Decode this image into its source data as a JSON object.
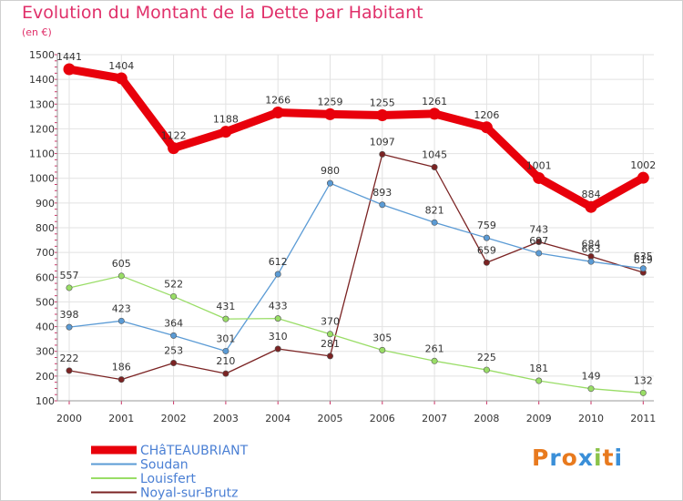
{
  "title": "Evolution du Montant de la Dette par Habitant",
  "subtitle": "(en €)",
  "logo": {
    "text": "Proxiti",
    "colors": [
      "#e87a1e",
      "#3a8fd8",
      "#e87a1e",
      "#3a8fd8",
      "#8bc34a",
      "#e87a1e",
      "#3a8fd8"
    ]
  },
  "chart_data": {
    "type": "line",
    "x": [
      "2000",
      "2001",
      "2002",
      "2003",
      "2004",
      "2005",
      "2006",
      "2007",
      "2008",
      "2009",
      "2010",
      "2011"
    ],
    "ylim": [
      100,
      1500
    ],
    "yticks": [
      100,
      200,
      300,
      400,
      500,
      600,
      700,
      800,
      900,
      1000,
      1100,
      1200,
      1300,
      1400,
      1500
    ],
    "grid": true,
    "legend_position": "bottom-left",
    "series": [
      {
        "name": "CHâTEAUBRIANT",
        "color": "#e8000b",
        "values": [
          1441,
          1404,
          1122,
          1188,
          1266,
          1259,
          1255,
          1261,
          1206,
          1001,
          884,
          1002
        ]
      },
      {
        "name": "Soudan",
        "color": "#5b9bd5",
        "values": [
          398,
          423,
          364,
          301,
          612,
          980,
          893,
          821,
          759,
          697,
          663,
          635
        ]
      },
      {
        "name": "Louisfert",
        "color": "#99dd66",
        "values": [
          557,
          605,
          522,
          431,
          433,
          370,
          305,
          261,
          225,
          181,
          149,
          132
        ]
      },
      {
        "name": "Noyal-sur-Brutz",
        "color": "#7b2323",
        "values": [
          222,
          186,
          253,
          210,
          310,
          281,
          1097,
          1045,
          659,
          743,
          684,
          619
        ]
      }
    ]
  }
}
